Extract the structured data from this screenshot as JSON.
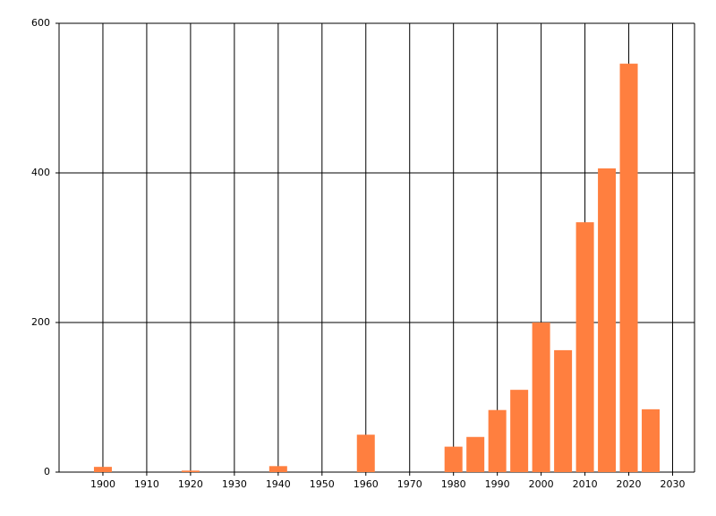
{
  "chart_data": {
    "type": "bar",
    "x": [
      1900,
      1920,
      1940,
      1960,
      1980,
      1985,
      1990,
      1995,
      2000,
      2005,
      2010,
      2015,
      2020,
      2025
    ],
    "values": [
      7,
      2,
      8,
      50,
      34,
      47,
      83,
      110,
      200,
      163,
      334,
      406,
      546,
      84
    ],
    "color": "#ff7f3f",
    "xlim": [
      1890,
      2035
    ],
    "xticks": [
      1900,
      1910,
      1920,
      1930,
      1940,
      1950,
      1960,
      1970,
      1980,
      1990,
      2000,
      2010,
      2020,
      2030
    ],
    "ylim": [
      0,
      600
    ],
    "yticks": [
      0,
      200,
      400,
      600
    ],
    "grid": true
  }
}
